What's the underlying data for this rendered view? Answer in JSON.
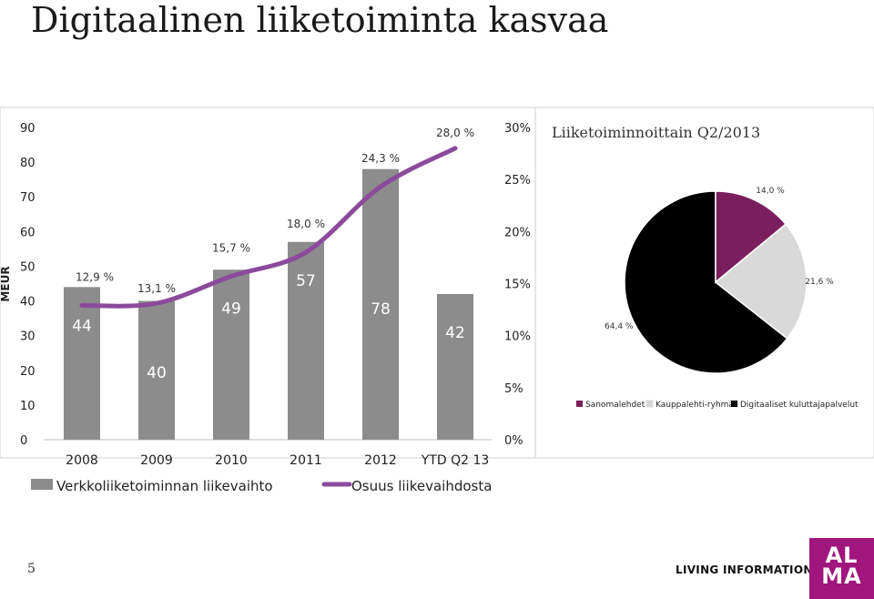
{
  "slide": {
    "title": "Digitaalinen liiketoiminta kasvaa",
    "page_number": "5",
    "tagline": "LIVING INFORMATION",
    "logo_text": "AL\nMA"
  },
  "chart_data": [
    {
      "type": "bar",
      "ylabel": "MEUR",
      "categories": [
        "2008",
        "2009",
        "2010",
        "2011",
        "2012",
        "YTD Q2 13"
      ],
      "ylim": [
        0,
        90
      ],
      "yticks": [
        "0",
        "10",
        "20",
        "30",
        "40",
        "50",
        "60",
        "70",
        "80",
        "90"
      ],
      "y2lim": [
        0,
        30
      ],
      "y2ticks": [
        "0%",
        "5%",
        "10%",
        "15%",
        "20%",
        "25%",
        "30%"
      ],
      "series": [
        {
          "name": "Verkkoliiketoiminnan liikevaihto",
          "kind": "bar",
          "color": "#8c8c8c",
          "values": [
            44,
            40,
            49,
            57,
            78,
            42
          ],
          "labels": [
            "44",
            "40",
            "49",
            "57",
            "78",
            "42"
          ]
        },
        {
          "name": "Osuus liikevaihdosta",
          "kind": "line",
          "axis": "secondary",
          "color": "#8b4a9c",
          "values": [
            12.9,
            13.1,
            15.7,
            18.0,
            24.3,
            28.0
          ],
          "labels": [
            "12,9 %",
            "13,1 %",
            "15,7 %",
            "18,0 %",
            "24,3 %",
            "28,0 %"
          ]
        }
      ],
      "grid": false,
      "legend": "bottom"
    },
    {
      "type": "pie",
      "title": "Liiketoiminnoittain Q2/2013",
      "slices": [
        {
          "name": "Digitaaliset kuluttajapalvelut",
          "value": 64.4,
          "label": "64,4 %",
          "color": "#000000"
        },
        {
          "name": "Sanomalehdet",
          "value": 14.0,
          "label": "14,0 %",
          "color": "#7b1e5e"
        },
        {
          "name": "Kauppalehti-ryhmä",
          "value": 21.6,
          "label": "21,6 %",
          "color": "#d9d9d9"
        }
      ],
      "legend_order": [
        "Sanomalehdet",
        "Kauppalehti-ryhmä",
        "Digitaaliset kuluttajapalvelut"
      ],
      "legend": "bottom"
    }
  ]
}
